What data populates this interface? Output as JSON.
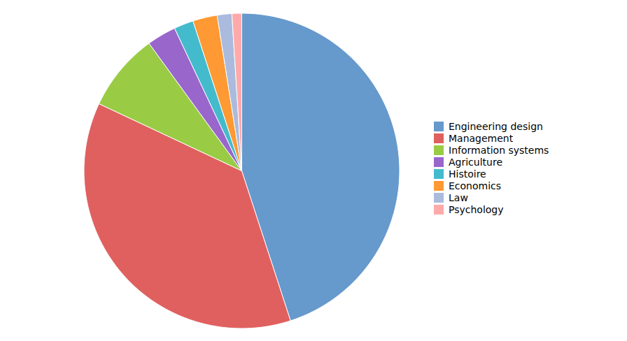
{
  "chart_data": {
    "type": "pie",
    "categories": [
      "Engineering design",
      "Management",
      "Information systems",
      "Agriculture",
      "Histoire",
      "Economics",
      "Law",
      "Psychology"
    ],
    "values": [
      45,
      37,
      8,
      3,
      2,
      2.5,
      1.5,
      1
    ],
    "colors": [
      "#6699CC",
      "#E06060",
      "#99CC44",
      "#9966CC",
      "#44BBCC",
      "#FF9933",
      "#AABBDD",
      "#FFAAAA"
    ],
    "legend": "right"
  }
}
